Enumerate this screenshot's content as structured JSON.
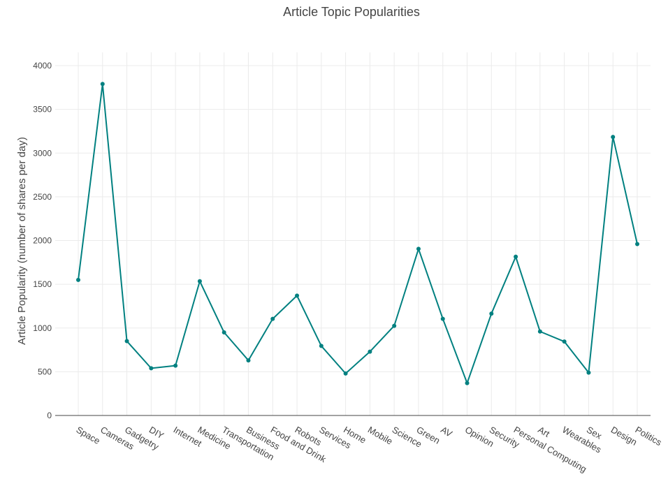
{
  "chart_data": {
    "type": "line",
    "title": "Article Topic Popularities",
    "xlabel": "",
    "ylabel": "Article Popularity (number of shares per day)",
    "ylim": [
      0,
      4000
    ],
    "yticks": [
      0,
      500,
      1000,
      1500,
      2000,
      2500,
      3000,
      3500,
      4000
    ],
    "grid": true,
    "legend": "none",
    "line_color": "#008080",
    "categories": [
      "Space",
      "Cameras",
      "Gadgetry",
      "DIY",
      "Internet",
      "Medicine",
      "Transportation",
      "Business",
      "Food and Drink",
      "Robots",
      "Services",
      "Home",
      "Mobile",
      "Science",
      "Green",
      "AV",
      "Opinion",
      "Security",
      "Personal Computing",
      "Art",
      "Wearables",
      "Sex",
      "Design",
      "Politics"
    ],
    "series": [
      {
        "values": [
          1550,
          3790,
          850,
          540,
          570,
          1535,
          950,
          630,
          1105,
          1370,
          795,
          480,
          730,
          1025,
          1905,
          1105,
          370,
          1165,
          1815,
          960,
          845,
          490,
          3185,
          1960
        ]
      }
    ]
  }
}
